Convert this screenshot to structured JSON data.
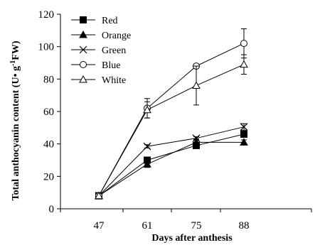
{
  "chart_data": {
    "type": "line",
    "xlabel": "Days after anthesis",
    "ylabel_main": "Total anthocyanin content (U• g",
    "ylabel_sup": "-1",
    "ylabel_tail": "FW)",
    "x": [
      "47",
      "61",
      "75",
      "88"
    ],
    "ylim": [
      0,
      120
    ],
    "yticks": [
      "0",
      "20",
      "40",
      "60",
      "80",
      "100",
      "120"
    ],
    "legend_position": "top-left",
    "series": [
      {
        "name": "Red",
        "marker": "square-filled",
        "values": [
          8,
          30,
          39,
          46
        ],
        "errors": [
          0,
          1.5,
          1.5,
          2
        ]
      },
      {
        "name": "Orange",
        "marker": "triangle-filled",
        "values": [
          8,
          27.5,
          41,
          41
        ],
        "errors": [
          0,
          2,
          2,
          1.5
        ]
      },
      {
        "name": "Green",
        "marker": "x",
        "values": [
          8,
          38.5,
          43.5,
          50.5
        ],
        "errors": [
          0,
          1,
          1,
          2
        ]
      },
      {
        "name": "Blue",
        "marker": "circle-open",
        "values": [
          8,
          62,
          88,
          102
        ],
        "errors": [
          0,
          6,
          1,
          9
        ]
      },
      {
        "name": "White",
        "marker": "triangle-open",
        "values": [
          8,
          61,
          76,
          89
        ],
        "errors": [
          0,
          5,
          12,
          6
        ]
      }
    ]
  }
}
